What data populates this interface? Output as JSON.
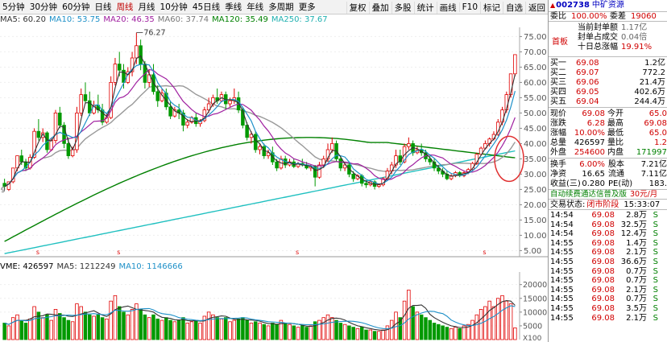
{
  "toolbar": {
    "periods": [
      "5分钟",
      "30分钟",
      "60分钟",
      "日线",
      "周线",
      "月线",
      "10分钟",
      "45日线",
      "季线",
      "年线",
      "多周期",
      "更多"
    ],
    "active_period": "周线",
    "right_tools": [
      "复权",
      "叠加",
      "多股",
      "统计",
      "画线",
      "F10",
      "标记",
      "自选",
      "返回"
    ]
  },
  "ma_legend": {
    "ma5": "MA5: 60.20",
    "ma10": "MA10: 53.75",
    "ma20": "MA20: 46.35",
    "ma60": "MA60: 37.74",
    "ma120": "MA120: 35.49",
    "ma250": "MA250: 37.67"
  },
  "vol_legend": {
    "vme": "VME: 426597",
    "ma5": "MA5: 1212249",
    "ma10": "MA10: 1146666"
  },
  "colors": {
    "up": "#e00000",
    "down": "#009900",
    "ma5": "#333333",
    "ma10": "#1e90c8",
    "ma20": "#a020a0",
    "ma60": "#999999",
    "ma120": "#008000",
    "ma250": "#20c0c0",
    "circle": "#e03030"
  },
  "price_axis": {
    "ticks": [
      "75.00",
      "70.00",
      "65.00",
      "60.00",
      "55.00",
      "50.00",
      "45.00",
      "40.00",
      "35.00",
      "30.00",
      "25.00",
      "20.00",
      "15.00",
      "10.00",
      "5.00"
    ],
    "high_label": "76.27",
    "left_edge_label": "9"
  },
  "vol_axis": {
    "ticks": [
      "20000",
      "15000",
      "10000",
      "5000"
    ],
    "unit": "X100"
  },
  "split_markers": [
    "s",
    "s",
    "s",
    "s"
  ],
  "stock": {
    "code": "002738",
    "name": "中矿资源",
    "wei_bi_label": "委比",
    "wei_bi": "100.00%",
    "wei_cha_label": "委差",
    "wei_cha": "19060",
    "seal_amount_label": "当前封单额",
    "seal_amount": "1.17亿",
    "seal_ratio_label": "封单占成交",
    "seal_ratio": "0.04倍",
    "seal_total_label": "十日总涨幅",
    "seal_total": "19.91%",
    "board_tag": "首板"
  },
  "order_book": [
    {
      "label": "买一",
      "price": "69.08",
      "qty": "1.2亿"
    },
    {
      "label": "买二",
      "price": "69.07",
      "qty": "772.2"
    },
    {
      "label": "买三",
      "price": "69.06",
      "qty": "21.4万"
    },
    {
      "label": "买四",
      "price": "69.05",
      "qty": "402.6万"
    },
    {
      "label": "买五",
      "price": "69.04",
      "qty": "244.4万"
    }
  ],
  "quote": [
    {
      "l1": "现价",
      "v1": "69.08",
      "l2": "今开",
      "v2": "65.0"
    },
    {
      "l1": "涨跌",
      "v1": "6.28",
      "l2": "最高",
      "v2": "69.08"
    },
    {
      "l1": "涨幅",
      "v1": "10.00%",
      "l2": "最低",
      "v2": "65.0"
    },
    {
      "l1": "总量",
      "v1": "426597",
      "l2": "量比",
      "v2": "1.2"
    },
    {
      "l1": "外盘",
      "v1": "254600",
      "l2": "内盘",
      "v2": "171997"
    }
  ],
  "fundamentals": [
    {
      "l1": "换手",
      "v1": "6.00%",
      "l2": "股本",
      "v2": "7.21亿"
    },
    {
      "l1": "净资",
      "v1": "16.65",
      "l2": "流通",
      "v2": "7.11亿"
    },
    {
      "l1": "收益(三)",
      "v1": "0.280",
      "l2": "PE(动)",
      "v2": "183."
    }
  ],
  "ad_banner": {
    "text": "自动续费通达信普及版",
    "price": "30元/月"
  },
  "trade_status": {
    "label": "交易状态:",
    "value": "闭市阶段",
    "time": "15:33:07"
  },
  "trades": [
    {
      "time": "14:54",
      "price": "69.08",
      "vol": "2.8万",
      "side": "S"
    },
    {
      "time": "14:54",
      "price": "69.08",
      "vol": "32.5万",
      "side": "S"
    },
    {
      "time": "14:54",
      "price": "69.08",
      "vol": "12.4万",
      "side": "S"
    },
    {
      "time": "14:55",
      "price": "69.08",
      "vol": "1.4万",
      "side": "S"
    },
    {
      "time": "14:55",
      "price": "69.08",
      "vol": "2.1万",
      "side": "S"
    },
    {
      "time": "14:55",
      "price": "69.08",
      "vol": "36.6万",
      "side": "S"
    },
    {
      "time": "14:55",
      "price": "69.08",
      "vol": "0.7万",
      "side": "S"
    },
    {
      "time": "14:55",
      "price": "69.08",
      "vol": "0.7万",
      "side": "S"
    },
    {
      "time": "14:55",
      "price": "69.08",
      "vol": "2.1万",
      "side": "S"
    },
    {
      "time": "14:55",
      "price": "69.08",
      "vol": "0.7万",
      "side": "S"
    },
    {
      "time": "14:55",
      "price": "69.08",
      "vol": "3.5万",
      "side": "S"
    },
    {
      "time": "14:55",
      "price": "69.08",
      "vol": "2.1万",
      "side": "S"
    }
  ],
  "chart_data": {
    "type": "candlestick",
    "ylim": [
      3,
      78
    ],
    "vol_ylim": [
      0,
      24000
    ],
    "candles": [
      [
        27.0,
        28.5,
        26.0,
        25.0
      ],
      [
        25.0,
        25.5,
        27.5,
        24.5
      ],
      [
        27.5,
        28.0,
        32.0,
        27.0
      ],
      [
        32.0,
        33.5,
        36.0,
        31.0
      ],
      [
        36.0,
        38.0,
        34.0,
        33.0
      ],
      [
        34.0,
        35.0,
        32.0,
        31.0
      ],
      [
        32.0,
        36.5,
        35.5,
        31.5
      ],
      [
        35.5,
        45.0,
        44.0,
        35.0
      ],
      [
        44.0,
        48.0,
        42.0,
        41.0
      ],
      [
        42.0,
        45.0,
        43.5,
        40.5
      ],
      [
        43.5,
        44.0,
        38.0,
        37.0
      ],
      [
        38.0,
        42.0,
        41.0,
        37.5
      ],
      [
        41.0,
        51.0,
        50.0,
        40.0
      ],
      [
        50.0,
        52.0,
        46.0,
        45.0
      ],
      [
        46.0,
        47.0,
        40.0,
        38.5
      ],
      [
        40.0,
        42.0,
        36.0,
        35.0
      ],
      [
        36.0,
        39.0,
        38.0,
        35.5
      ],
      [
        38.0,
        52.0,
        50.0,
        37.0
      ],
      [
        50.0,
        58.0,
        56.0,
        49.0
      ],
      [
        56.0,
        60.0,
        54.0,
        53.0
      ],
      [
        54.0,
        57.0,
        50.0,
        49.0
      ],
      [
        50.0,
        54.0,
        52.5,
        49.5
      ],
      [
        52.5,
        56.0,
        51.0,
        50.0
      ],
      [
        51.0,
        53.0,
        47.0,
        46.0
      ],
      [
        47.0,
        50.0,
        48.5,
        46.5
      ],
      [
        48.5,
        62.0,
        60.0,
        48.0
      ],
      [
        60.0,
        68.0,
        66.0,
        59.0
      ],
      [
        66.0,
        70.0,
        64.0,
        62.0
      ],
      [
        64.0,
        66.0,
        60.0,
        58.0
      ],
      [
        60.0,
        65.0,
        63.5,
        59.5
      ],
      [
        63.5,
        70.0,
        68.0,
        62.0
      ],
      [
        68.0,
        76.27,
        72.0,
        66.0
      ],
      [
        72.0,
        74.0,
        66.0,
        64.0
      ],
      [
        66.0,
        67.0,
        60.0,
        58.0
      ],
      [
        60.0,
        64.0,
        62.5,
        58.5
      ],
      [
        62.5,
        66.0,
        57.0,
        56.0
      ],
      [
        57.0,
        59.0,
        54.0,
        52.0
      ],
      [
        54.0,
        58.0,
        56.5,
        53.5
      ],
      [
        56.5,
        58.0,
        52.0,
        51.0
      ],
      [
        52.0,
        54.0,
        49.0,
        48.0
      ],
      [
        49.0,
        52.0,
        51.0,
        48.5
      ],
      [
        51.0,
        53.0,
        50.0,
        48.0
      ],
      [
        50.0,
        51.0,
        46.0,
        44.0
      ],
      [
        46.0,
        48.0,
        47.0,
        45.0
      ],
      [
        47.0,
        49.0,
        48.5,
        46.5
      ],
      [
        48.5,
        50.0,
        46.5,
        45.5
      ],
      [
        46.5,
        48.0,
        47.5,
        45.5
      ],
      [
        47.5,
        52.0,
        51.0,
        47.0
      ],
      [
        51.0,
        55.0,
        53.0,
        50.0
      ],
      [
        53.0,
        56.0,
        55.0,
        52.0
      ],
      [
        55.0,
        58.0,
        54.0,
        53.0
      ],
      [
        54.0,
        57.0,
        56.0,
        53.5
      ],
      [
        56.0,
        57.0,
        53.0,
        51.0
      ],
      [
        53.0,
        55.0,
        54.0,
        52.0
      ],
      [
        54.0,
        58.0,
        55.0,
        53.0
      ],
      [
        55.0,
        57.0,
        51.0,
        50.0
      ],
      [
        51.0,
        52.0,
        46.0,
        45.0
      ],
      [
        46.0,
        47.0,
        42.0,
        41.0
      ],
      [
        42.0,
        44.0,
        43.0,
        40.0
      ],
      [
        43.0,
        44.0,
        38.0,
        37.0
      ],
      [
        38.0,
        40.0,
        39.0,
        36.5
      ],
      [
        39.0,
        40.0,
        36.0,
        35.0
      ],
      [
        36.0,
        38.0,
        37.0,
        35.0
      ],
      [
        37.0,
        39.0,
        34.0,
        33.0
      ],
      [
        34.0,
        35.0,
        32.0,
        31.0
      ],
      [
        32.0,
        36.0,
        35.0,
        31.5
      ],
      [
        35.0,
        36.0,
        33.0,
        32.0
      ],
      [
        33.0,
        35.0,
        34.0,
        32.5
      ],
      [
        34.0,
        35.0,
        32.5,
        32.0
      ],
      [
        32.5,
        34.0,
        33.5,
        32.0
      ],
      [
        33.5,
        35.0,
        33.0,
        32.5
      ],
      [
        33.0,
        34.0,
        32.0,
        31.5
      ],
      [
        32.0,
        33.0,
        32.5,
        31.0
      ],
      [
        32.5,
        33.0,
        29.0,
        26.0
      ],
      [
        29.0,
        34.0,
        33.0,
        28.5
      ],
      [
        33.0,
        36.0,
        35.0,
        32.0
      ],
      [
        35.0,
        40.0,
        38.0,
        34.0
      ],
      [
        38.0,
        42.0,
        40.0,
        37.0
      ],
      [
        40.0,
        41.0,
        35.0,
        34.0
      ],
      [
        35.0,
        36.0,
        32.0,
        31.0
      ],
      [
        32.0,
        34.0,
        33.0,
        31.0
      ],
      [
        33.0,
        34.0,
        30.0,
        29.0
      ],
      [
        30.0,
        31.0,
        28.5,
        27.5
      ],
      [
        28.5,
        30.0,
        29.5,
        28.0
      ],
      [
        29.5,
        30.0,
        27.0,
        26.0
      ],
      [
        27.0,
        28.0,
        26.5,
        25.5
      ],
      [
        26.5,
        28.0,
        27.5,
        26.0
      ],
      [
        27.5,
        28.0,
        26.0,
        25.0
      ],
      [
        26.0,
        27.0,
        26.5,
        25.5
      ],
      [
        26.5,
        29.0,
        28.5,
        26.0
      ],
      [
        28.5,
        32.0,
        31.0,
        28.0
      ],
      [
        31.0,
        34.0,
        33.0,
        30.0
      ],
      [
        33.0,
        38.0,
        36.0,
        32.0
      ],
      [
        36.0,
        38.0,
        34.0,
        33.0
      ],
      [
        34.0,
        40.0,
        39.0,
        33.5
      ],
      [
        39.0,
        42.0,
        40.0,
        38.0
      ],
      [
        40.0,
        41.0,
        37.0,
        36.0
      ],
      [
        37.0,
        39.0,
        38.0,
        36.5
      ],
      [
        38.0,
        40.0,
        37.0,
        36.0
      ],
      [
        37.0,
        38.0,
        35.0,
        34.0
      ],
      [
        35.0,
        36.0,
        34.0,
        33.0
      ],
      [
        34.0,
        35.0,
        32.0,
        31.0
      ],
      [
        32.0,
        33.0,
        31.0,
        30.0
      ],
      [
        31.0,
        32.0,
        30.0,
        29.0
      ],
      [
        30.0,
        31.0,
        28.5,
        28.0
      ],
      [
        28.5,
        30.0,
        29.5,
        28.0
      ],
      [
        29.5,
        31.0,
        30.5,
        29.0
      ],
      [
        30.5,
        31.0,
        29.5,
        29.0
      ],
      [
        29.5,
        31.0,
        30.5,
        29.0
      ],
      [
        30.5,
        32.0,
        31.5,
        30.0
      ],
      [
        31.5,
        34.0,
        33.5,
        31.0
      ],
      [
        33.5,
        37.0,
        36.5,
        33.0
      ],
      [
        36.5,
        39.0,
        38.5,
        36.0
      ],
      [
        38.5,
        41.0,
        40.0,
        38.0
      ],
      [
        40.0,
        42.0,
        41.5,
        39.0
      ],
      [
        41.5,
        44.0,
        43.0,
        41.0
      ],
      [
        43.0,
        48.0,
        47.0,
        42.5
      ],
      [
        47.0,
        52.0,
        51.0,
        46.0
      ],
      [
        51.0,
        57.0,
        56.0,
        50.0
      ],
      [
        56.0,
        62.0,
        62.8,
        55.0
      ],
      [
        62.8,
        69.08,
        69.08,
        62.0
      ]
    ],
    "volumes": [
      6000,
      5000,
      8000,
      9000,
      7000,
      6000,
      7500,
      12000,
      10000,
      8000,
      9000,
      7000,
      11000,
      9500,
      8000,
      7000,
      6500,
      13000,
      12000,
      10000,
      9000,
      8500,
      9000,
      8000,
      7500,
      14000,
      16000,
      12000,
      10000,
      9000,
      11000,
      13000,
      11000,
      9000,
      8000,
      9000,
      7500,
      7000,
      8000,
      7000,
      6500,
      7000,
      8000,
      6000,
      6500,
      7000,
      6000,
      8500,
      10000,
      9000,
      8000,
      7500,
      8000,
      6500,
      7000,
      7500,
      8000,
      7000,
      6000,
      6500,
      6000,
      5500,
      5000,
      6000,
      5500,
      7000,
      6000,
      5500,
      5000,
      4500,
      5000,
      4500,
      5000,
      6500,
      7000,
      8000,
      9000,
      8000,
      7000,
      6000,
      5500,
      5000,
      4500,
      4000,
      4500,
      3500,
      3500,
      3000,
      3000,
      3500,
      5000,
      7000,
      10000,
      8000,
      14000,
      18000,
      12000,
      10000,
      9000,
      8000,
      7000,
      6000,
      5500,
      5000,
      4500,
      4000,
      4500,
      4000,
      5000,
      5500,
      7000,
      9000,
      11000,
      12000,
      14000,
      12000,
      15000,
      16000,
      14000,
      13000,
      4265
    ]
  }
}
